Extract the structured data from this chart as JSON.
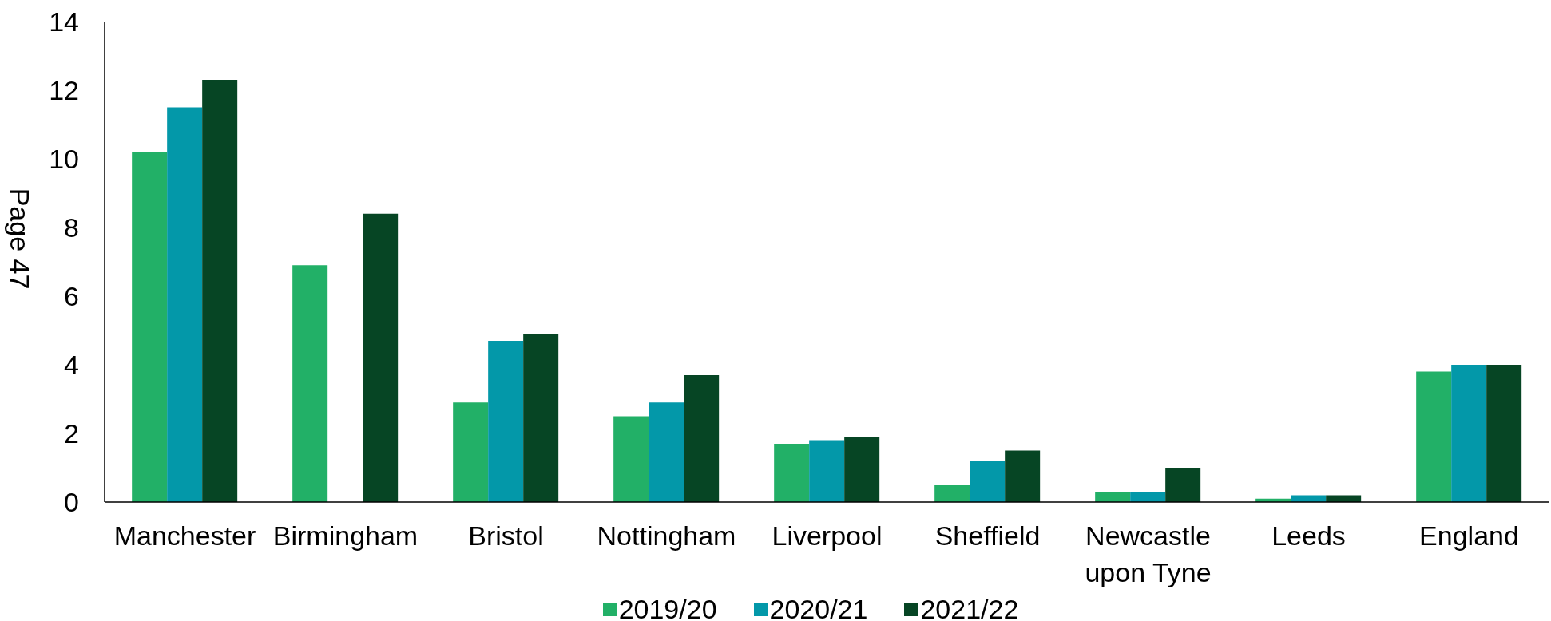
{
  "chart_data": {
    "type": "bar",
    "ylabel": "Page 47",
    "categories": [
      "Manchester",
      "Birmingham",
      "Bristol",
      "Nottingham",
      "Liverpool",
      "Sheffield",
      "Newcastle upon Tyne",
      "Leeds",
      "England"
    ],
    "series": [
      {
        "name": "2019/20",
        "color": "#22b067",
        "values": [
          10.2,
          6.9,
          2.9,
          2.5,
          1.7,
          0.5,
          0.3,
          0.1,
          3.8
        ]
      },
      {
        "name": "2020/21",
        "color": "#0398a9",
        "values": [
          11.5,
          null,
          4.7,
          2.9,
          1.8,
          1.2,
          0.3,
          0.2,
          4.0
        ]
      },
      {
        "name": "2021/22",
        "color": "#064524",
        "values": [
          12.3,
          8.4,
          4.9,
          3.7,
          1.9,
          1.5,
          1.0,
          0.2,
          4.0
        ]
      }
    ],
    "ylim": [
      0,
      14
    ],
    "yticks": [
      0,
      2,
      4,
      6,
      8,
      10,
      12,
      14
    ],
    "legend": "bottom"
  }
}
